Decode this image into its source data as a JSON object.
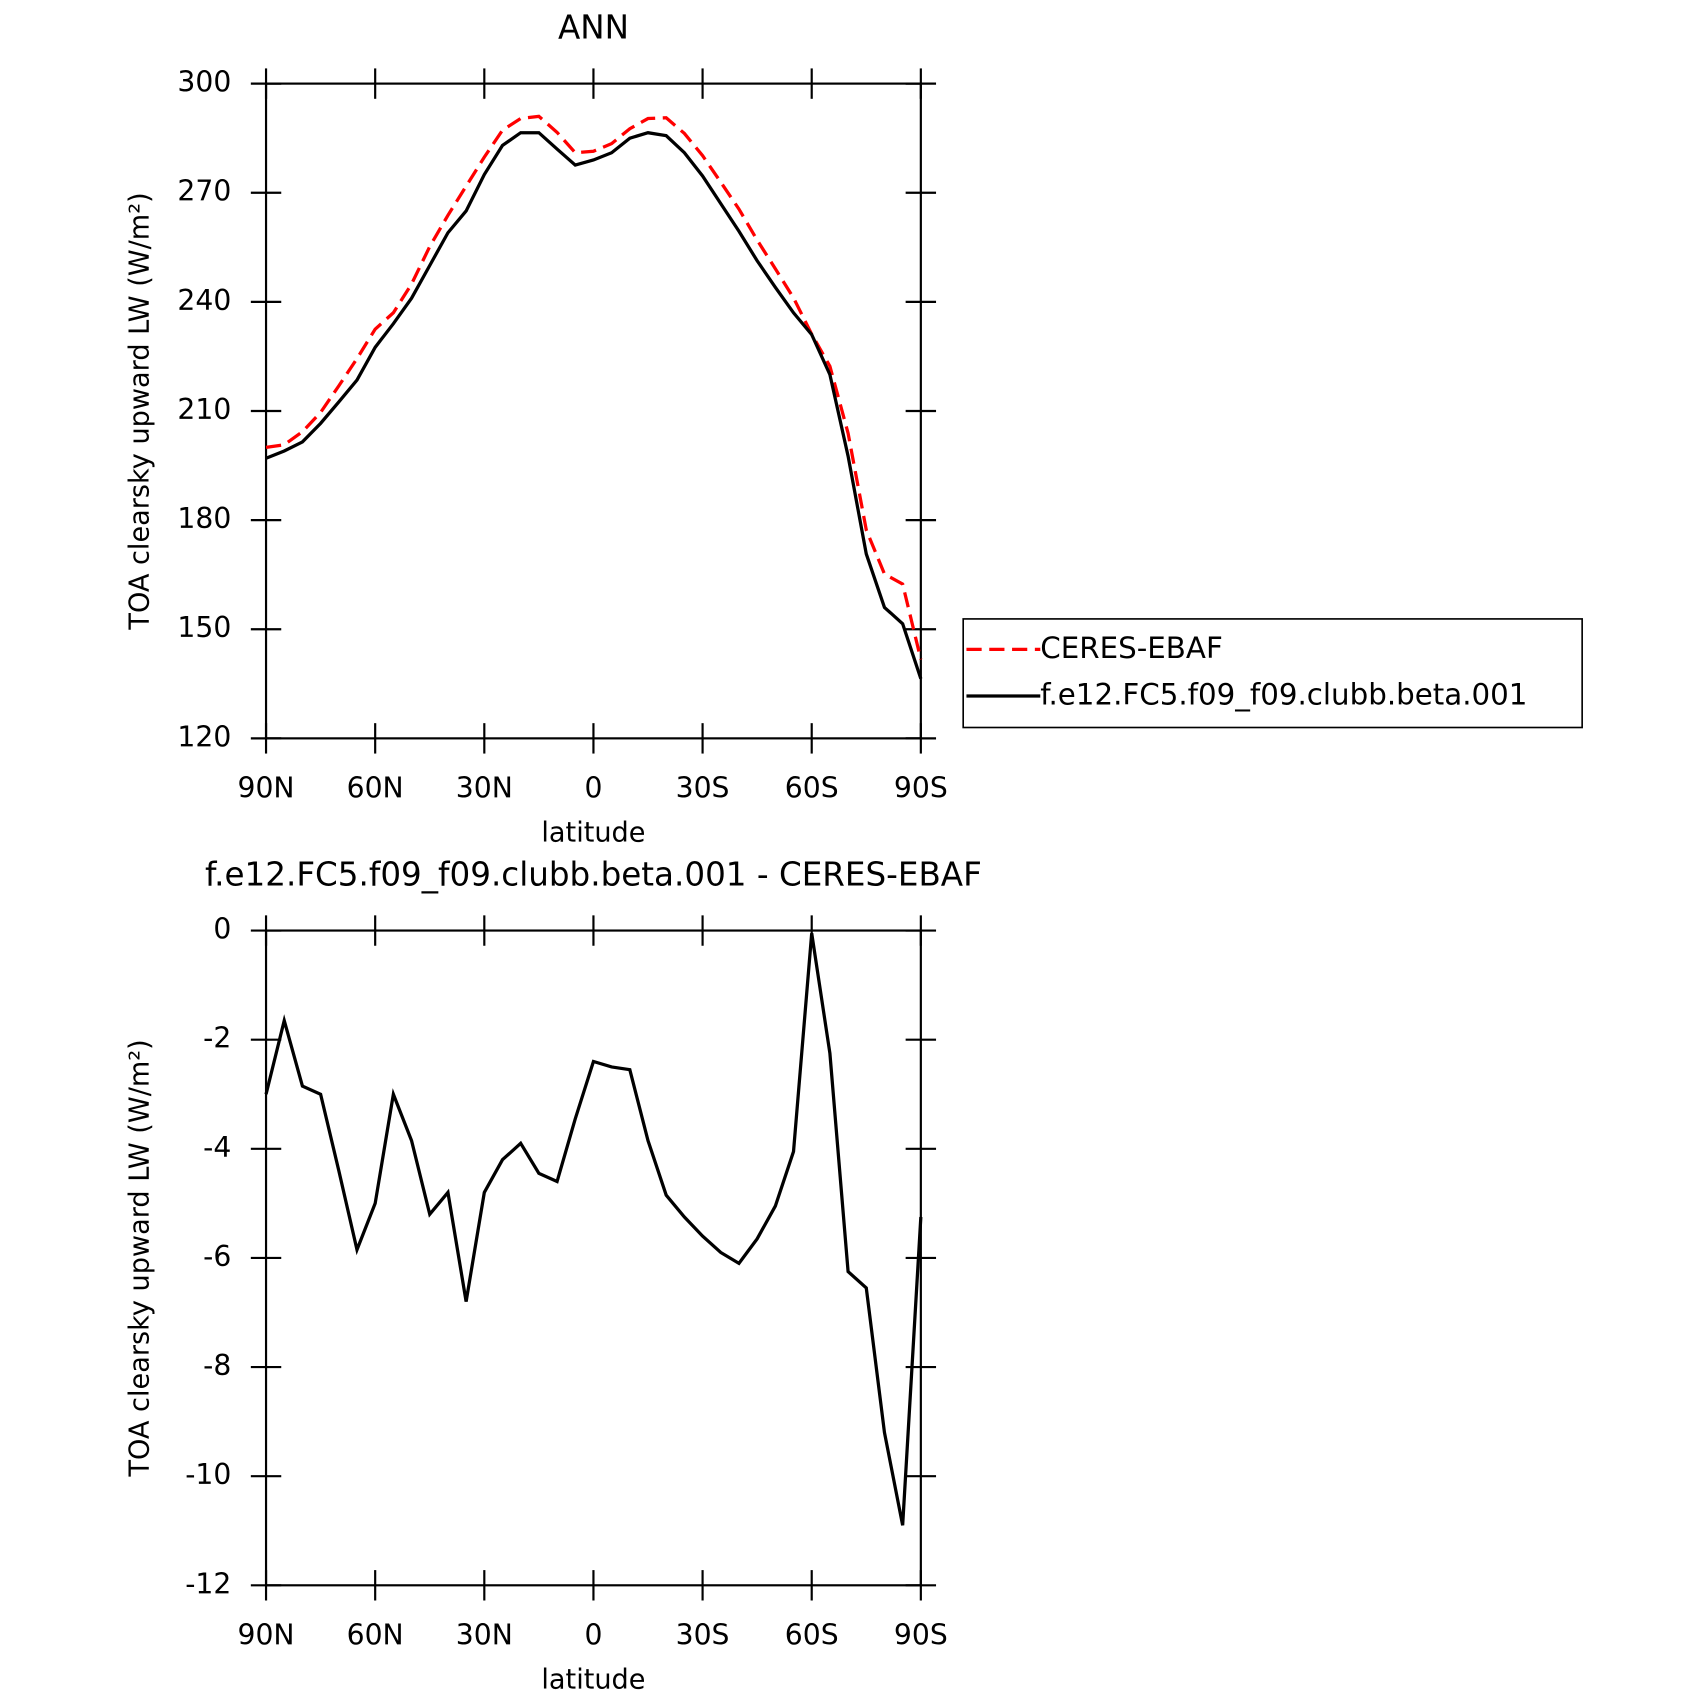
{
  "chart_data": [
    {
      "type": "line",
      "title": "ANN",
      "xlabel": "latitude",
      "ylabel": "TOA clearsky upward LW (W/m²)",
      "xlim": [
        90,
        -90
      ],
      "xticks": [
        {
          "value": 90,
          "label": "90N"
        },
        {
          "value": 60,
          "label": "60N"
        },
        {
          "value": 30,
          "label": "30N"
        },
        0,
        {
          "value": -30,
          "label": "30S"
        },
        {
          "value": -60,
          "label": "60S"
        },
        {
          "value": -90,
          "label": "90S"
        }
      ],
      "ylim": [
        120,
        300
      ],
      "yticks": [
        120,
        150,
        180,
        210,
        240,
        270,
        300
      ],
      "x": [
        90,
        85,
        80,
        75,
        70,
        65,
        60,
        55,
        50,
        45,
        40,
        35,
        30,
        25,
        20,
        15,
        10,
        5,
        0,
        -5,
        -10,
        -15,
        -20,
        -25,
        -30,
        -35,
        -40,
        -45,
        -50,
        -55,
        -60,
        -65,
        -70,
        -75,
        -80,
        -85,
        -90
      ],
      "series": [
        {
          "name": "CERES-EBAF",
          "color": "#ff0000",
          "line_style": "dashed",
          "values": [
            200,
            200.7,
            204.3,
            209.6,
            216.9,
            224.4,
            232.5,
            237,
            244.9,
            255.2,
            263.8,
            271.8,
            279.8,
            287.2,
            290.4,
            291,
            286.6,
            281,
            281.4,
            283.5,
            287.6,
            290.4,
            290.6,
            286.3,
            280.2,
            272.9,
            265.5,
            257,
            249.1,
            241.1,
            231.1,
            222.3,
            203.9,
            177.3,
            165.2,
            162.4,
            141.7
          ]
        },
        {
          "name": "f.e12.FC5.f09_f09.clubb.beta.001",
          "color": "#000000",
          "line_style": "solid",
          "values": [
            197,
            199,
            201.5,
            206.6,
            212.5,
            218.5,
            227.5,
            234,
            241,
            250,
            259,
            265,
            275,
            283,
            286.5,
            286.5,
            282,
            277.6,
            279,
            281,
            285,
            286.5,
            285.7,
            281,
            274.6,
            267,
            259.4,
            251.3,
            244,
            237,
            231,
            220,
            197.6,
            170.7,
            156,
            151.5,
            136.4
          ]
        }
      ]
    },
    {
      "type": "line",
      "title": "f.e12.FC5.f09_f09.clubb.beta.001 - CERES-EBAF",
      "xlabel": "latitude",
      "ylabel": "TOA clearsky upward LW (W/m²)",
      "xlim": [
        90,
        -90
      ],
      "xticks": [
        {
          "value": 90,
          "label": "90N"
        },
        {
          "value": 60,
          "label": "60N"
        },
        {
          "value": 30,
          "label": "30N"
        },
        0,
        {
          "value": -30,
          "label": "30S"
        },
        {
          "value": -60,
          "label": "60S"
        },
        {
          "value": -90,
          "label": "90S"
        }
      ],
      "ylim": [
        -12,
        0
      ],
      "yticks": [
        -12,
        -10,
        -8,
        -6,
        -4,
        -2,
        0
      ],
      "x": [
        90,
        85,
        80,
        75,
        70,
        65,
        60,
        55,
        50,
        45,
        40,
        35,
        30,
        25,
        20,
        15,
        10,
        5,
        0,
        -5,
        -10,
        -15,
        -20,
        -25,
        -30,
        -35,
        -40,
        -45,
        -50,
        -55,
        -60,
        -65,
        -70,
        -75,
        -80,
        -85,
        -90
      ],
      "series": [
        {
          "color": "#000000",
          "line_style": "solid",
          "values": [
            -3.0,
            -1.65,
            -2.85,
            -3.0,
            -4.4,
            -5.85,
            -5.0,
            -3.0,
            -3.85,
            -5.2,
            -4.8,
            -6.8,
            -4.8,
            -4.2,
            -3.9,
            -4.45,
            -4.6,
            -3.45,
            -2.4,
            -2.5,
            -2.55,
            -3.85,
            -4.85,
            -5.25,
            -5.6,
            -5.9,
            -6.1,
            -5.65,
            -5.05,
            -4.05,
            -0.05,
            -2.25,
            -6.25,
            -6.55,
            -9.2,
            -10.9,
            -5.25
          ]
        }
      ]
    }
  ]
}
